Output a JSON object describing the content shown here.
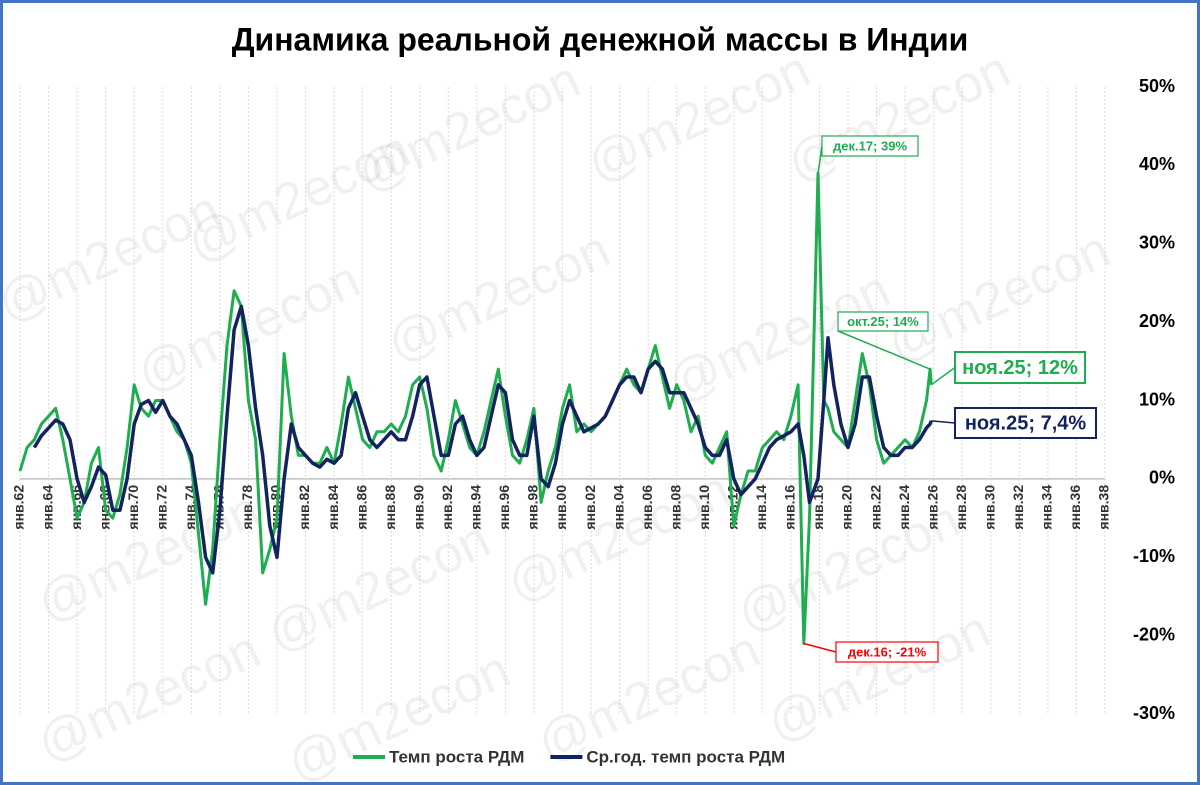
{
  "chart_data": {
    "type": "line",
    "title": "Динамика реальной денежной массы в Индии",
    "watermark": "@m2econ",
    "x": [
      1962,
      1962.5,
      1963,
      1963.5,
      1964,
      1964.5,
      1965,
      1965.5,
      1966,
      1966.5,
      1967,
      1967.5,
      1968,
      1968.5,
      1969,
      1969.5,
      1970,
      1970.5,
      1971,
      1971.5,
      1972,
      1972.5,
      1973,
      1973.5,
      1974,
      1974.5,
      1975,
      1975.5,
      1976,
      1976.5,
      1977,
      1977.5,
      1978,
      1978.5,
      1979,
      1979.5,
      1980,
      1980.5,
      1981,
      1981.5,
      1982,
      1982.5,
      1983,
      1983.5,
      1984,
      1984.5,
      1985,
      1985.5,
      1986,
      1986.5,
      1987,
      1987.5,
      1988,
      1988.5,
      1989,
      1989.5,
      1990,
      1990.5,
      1991,
      1991.5,
      1992,
      1992.5,
      1993,
      1993.5,
      1994,
      1994.5,
      1995,
      1995.5,
      1996,
      1996.5,
      1997,
      1997.5,
      1998,
      1998.5,
      1999,
      1999.5,
      2000,
      2000.5,
      2001,
      2001.5,
      2002,
      2002.5,
      2003,
      2003.5,
      2004,
      2004.5,
      2005,
      2005.5,
      2006,
      2006.5,
      2007,
      2007.5,
      2008,
      2008.5,
      2009,
      2009.5,
      2010,
      2010.5,
      2011,
      2011.5,
      2012,
      2012.5,
      2013,
      2013.5,
      2014,
      2014.5,
      2015,
      2015.5,
      2016,
      2016.5,
      2016.9,
      2017.3,
      2017.9,
      2018.3,
      2018.6,
      2019,
      2019.5,
      2020,
      2020.5,
      2021,
      2021.5,
      2022,
      2022.5,
      2023,
      2023.5,
      2024,
      2024.5,
      2025,
      2025.5,
      2025.75,
      2025.83
    ],
    "series": [
      {
        "name": "Темп роста РДМ",
        "color": "#1fae4f",
        "values": [
          1,
          4,
          5,
          7,
          8,
          9,
          5,
          0,
          -5,
          -3,
          2,
          4,
          -4,
          -5,
          -2,
          4,
          12,
          9,
          8,
          10,
          10,
          8,
          6,
          5,
          2,
          -7,
          -16,
          -9,
          5,
          17,
          24,
          22,
          10,
          5,
          -12,
          -9,
          -5,
          16,
          8,
          3,
          3,
          2,
          2,
          4,
          2,
          7,
          13,
          9,
          5,
          4,
          6,
          6,
          7,
          6,
          8,
          12,
          13,
          9,
          3,
          1,
          5,
          10,
          7,
          4,
          3,
          6,
          10,
          14,
          8,
          3,
          2,
          5,
          9,
          -3,
          1,
          4,
          9,
          12,
          6,
          7,
          6,
          7,
          8,
          10,
          12,
          14,
          12,
          11,
          14,
          17,
          13,
          9,
          12,
          10,
          6,
          8,
          3,
          2,
          4,
          6,
          -6,
          -2,
          1,
          1,
          4,
          5,
          6,
          5,
          8,
          12,
          -21,
          -5,
          39,
          10,
          9,
          6,
          5,
          4,
          10,
          16,
          12,
          5,
          2,
          3,
          4,
          5,
          4,
          6,
          10,
          14,
          12
        ]
      },
      {
        "name": "Ср.год. темп роста РДМ",
        "color": "#13235f",
        "values": [
          null,
          null,
          4,
          5.5,
          6.5,
          7.5,
          7,
          5,
          0,
          -3,
          -1,
          1.5,
          0.5,
          -4,
          -4,
          0,
          7,
          9.5,
          10,
          8.5,
          10,
          8,
          7,
          5,
          3,
          -3,
          -10,
          -12,
          -4,
          8,
          19,
          22,
          17,
          9,
          3,
          -6,
          -10,
          0,
          7,
          4,
          3,
          2,
          1.5,
          2.5,
          2,
          3,
          9,
          11,
          8,
          5,
          4,
          5,
          6,
          5,
          5,
          8,
          12,
          13,
          8,
          3,
          3,
          7,
          8,
          5,
          3,
          4,
          8,
          12,
          11,
          5,
          3,
          3,
          8,
          0,
          -1,
          2,
          7,
          10,
          8,
          6,
          6.5,
          7,
          8,
          10,
          12,
          13,
          13,
          11,
          14,
          15,
          14,
          11,
          11,
          11,
          9,
          7,
          4,
          3,
          3,
          5,
          0,
          -2,
          -1,
          0,
          2,
          4,
          5,
          5.5,
          6,
          7,
          3,
          -3,
          0,
          10,
          18,
          12,
          7,
          4,
          7,
          13,
          13,
          8,
          4,
          3,
          3,
          4,
          4,
          5,
          6.5,
          7,
          7.4
        ]
      }
    ],
    "xlim": [
      1962,
      2038
    ],
    "xticks": [
      {
        "value": 1962,
        "label": "янв.62"
      },
      {
        "value": 1964,
        "label": "янв.64"
      },
      {
        "value": 1966,
        "label": "янв.66"
      },
      {
        "value": 1968,
        "label": "янв.68"
      },
      {
        "value": 1970,
        "label": "янв.70"
      },
      {
        "value": 1972,
        "label": "янв.72"
      },
      {
        "value": 1974,
        "label": "янв.74"
      },
      {
        "value": 1976,
        "label": "янв.76"
      },
      {
        "value": 1978,
        "label": "янв.78"
      },
      {
        "value": 1980,
        "label": "янв.80"
      },
      {
        "value": 1982,
        "label": "янв.82"
      },
      {
        "value": 1984,
        "label": "янв.84"
      },
      {
        "value": 1986,
        "label": "янв.86"
      },
      {
        "value": 1988,
        "label": "янв.88"
      },
      {
        "value": 1990,
        "label": "янв.90"
      },
      {
        "value": 1992,
        "label": "янв.92"
      },
      {
        "value": 1994,
        "label": "янв.94"
      },
      {
        "value": 1996,
        "label": "янв.96"
      },
      {
        "value": 1998,
        "label": "янв.98"
      },
      {
        "value": 2000,
        "label": "янв.00"
      },
      {
        "value": 2002,
        "label": "янв.02"
      },
      {
        "value": 2004,
        "label": "янв.04"
      },
      {
        "value": 2006,
        "label": "янв.06"
      },
      {
        "value": 2008,
        "label": "янв.08"
      },
      {
        "value": 2010,
        "label": "янв.10"
      },
      {
        "value": 2012,
        "label": "янв.12"
      },
      {
        "value": 2014,
        "label": "янв.14"
      },
      {
        "value": 2016,
        "label": "янв.16"
      },
      {
        "value": 2018,
        "label": "янв.18"
      },
      {
        "value": 2020,
        "label": "янв.20"
      },
      {
        "value": 2022,
        "label": "янв.22"
      },
      {
        "value": 2024,
        "label": "янв.24"
      },
      {
        "value": 2026,
        "label": "янв.26"
      },
      {
        "value": 2028,
        "label": "янв.28"
      },
      {
        "value": 2030,
        "label": "янв.30"
      },
      {
        "value": 2032,
        "label": "янв.32"
      },
      {
        "value": 2034,
        "label": "янв.34"
      },
      {
        "value": 2036,
        "label": "янв.36"
      },
      {
        "value": 2038,
        "label": "янв.38"
      }
    ],
    "ylim": [
      -30,
      50
    ],
    "yticks": [
      {
        "value": 50,
        "label": "50%"
      },
      {
        "value": 40,
        "label": "40%"
      },
      {
        "value": 30,
        "label": "30%"
      },
      {
        "value": 20,
        "label": "20%"
      },
      {
        "value": 10,
        "label": "10%"
      },
      {
        "value": 0,
        "label": "0%"
      },
      {
        "value": -10,
        "label": "-10%"
      },
      {
        "value": -20,
        "label": "-20%"
      },
      {
        "value": -30,
        "label": "-30%"
      }
    ],
    "y_axis_side": "right",
    "grid": true,
    "legend": "bottom",
    "annotations": [
      {
        "text": "дек.17; 39%",
        "x": 2017.9,
        "y": 39,
        "color": "#1fae4f"
      },
      {
        "text": "окт.25; 14%",
        "x": 2025.75,
        "y": 14,
        "color": "#1fae4f"
      },
      {
        "text": "дек.16; -21%",
        "x": 2016.9,
        "y": -21,
        "color": "#ff0000"
      },
      {
        "text": "ноя.25; 12%",
        "x": 2025.83,
        "y": 12,
        "color": "#1fae4f"
      },
      {
        "text": "ноя.25; 7,4%",
        "x": 2025.83,
        "y": 7.4,
        "color": "#13235f"
      }
    ]
  }
}
